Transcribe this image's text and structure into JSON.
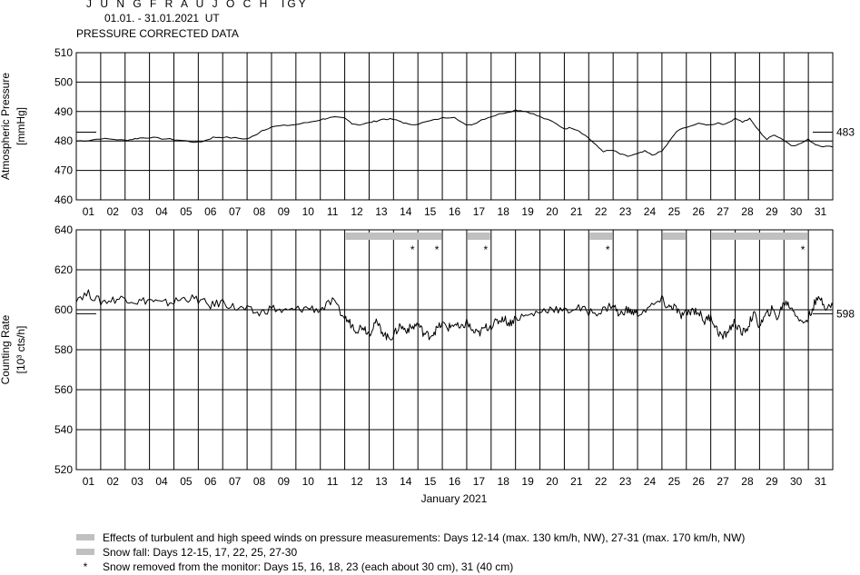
{
  "header": {
    "station": "J U N G F R A U J O C H  IGY",
    "period": "01.01. - 31.01.2021  UT",
    "subtitle": "PRESSURE CORRECTED DATA"
  },
  "days": [
    "01",
    "02",
    "03",
    "04",
    "05",
    "06",
    "07",
    "08",
    "09",
    "10",
    "11",
    "12",
    "13",
    "14",
    "15",
    "16",
    "17",
    "18",
    "19",
    "20",
    "21",
    "22",
    "23",
    "24",
    "25",
    "26",
    "27",
    "28",
    "29",
    "30",
    "31"
  ],
  "xlabel": "January 2021",
  "legend": {
    "wind": "Effects of turbulent and high speed winds on pressure measurements: Days 12-14 (max. 130 km/h, NW), 27-31 (max. 170 km/h, NW)",
    "snowfall": "Snow fall: Days 12-15, 17, 22, 25, 27-30",
    "snow_removed": "Snow removed from the monitor: Days 15, 16, 18, 23 (each about 30 cm), 31 (40 cm)",
    "star_symbol": "*"
  },
  "colors": {
    "bar": "#c0c0c0",
    "line": "#000000"
  },
  "chart_data": [
    {
      "type": "line",
      "ylabel": "Atmospheric Pressure",
      "yunit": "[mmHg]",
      "ylim": [
        460,
        510
      ],
      "yticks": [
        460,
        470,
        480,
        490,
        500,
        510
      ],
      "xlim": [
        1,
        32
      ],
      "reference_value": 483,
      "reference_label": "483",
      "series": [
        {
          "x": [
            1.0,
            1.5,
            2.0,
            2.5,
            3.0,
            3.3,
            3.6,
            4.0,
            4.5,
            5.0,
            5.5,
            6.0,
            6.3,
            6.6,
            7.0,
            7.5,
            8.0,
            8.3,
            8.6,
            9.0,
            9.5,
            10.0,
            10.5,
            11.0,
            11.3,
            11.6,
            12.0,
            12.3,
            12.6,
            13.0,
            13.3,
            13.6,
            14.0,
            14.3,
            14.6,
            15.0,
            15.5,
            16.0,
            16.5,
            17.0,
            17.3,
            17.6,
            18.0,
            18.5,
            19.0,
            19.3,
            19.6,
            20.0,
            20.5,
            21.0,
            21.3,
            21.6,
            22.0,
            22.3,
            22.6,
            23.0,
            23.3,
            23.6,
            24.0,
            24.3,
            24.6,
            25.0,
            25.3,
            25.6,
            26.0,
            26.5,
            27.0,
            27.3,
            27.6,
            28.0,
            28.3,
            28.6,
            29.0,
            29.3,
            29.6,
            30.0,
            30.3,
            30.6,
            31.0,
            31.3,
            31.6,
            32.0
          ],
          "y": [
            480.0,
            480.2,
            480.8,
            480.6,
            480.2,
            480.6,
            481.0,
            481.2,
            480.8,
            480.5,
            480.0,
            479.5,
            480.2,
            481.2,
            481.3,
            481.0,
            480.7,
            481.8,
            483.5,
            484.8,
            485.2,
            485.6,
            486.3,
            487.2,
            487.8,
            488.0,
            487.7,
            486.0,
            485.5,
            486.2,
            486.8,
            487.5,
            487.3,
            486.6,
            485.6,
            485.8,
            486.8,
            487.8,
            488.2,
            485.2,
            485.8,
            487.2,
            488.3,
            489.5,
            490.5,
            490.3,
            489.6,
            488.2,
            486.6,
            484.2,
            484.5,
            483.5,
            481.0,
            478.5,
            476.5,
            476.8,
            475.5,
            474.8,
            475.6,
            476.5,
            475.2,
            476.5,
            479.8,
            483.2,
            484.8,
            485.8,
            485.5,
            486.2,
            485.6,
            487.8,
            486.5,
            487.5,
            483.2,
            480.5,
            482.2,
            480.3,
            478.5,
            478.8,
            480.5,
            478.8,
            478.2,
            478.0
          ]
        }
      ]
    },
    {
      "type": "line",
      "ylabel": "Counting Rate",
      "yunit": "[10³ cts/h]",
      "ylim": [
        520,
        640
      ],
      "yticks": [
        520,
        540,
        560,
        580,
        600,
        620,
        640
      ],
      "xlim": [
        1,
        32
      ],
      "reference_value": 598,
      "reference_label": "598",
      "wind_periods": [
        [
          12,
          15
        ],
        [
          27,
          32
        ]
      ],
      "snowfall_periods": [
        [
          12,
          16
        ],
        [
          17,
          18
        ],
        [
          22,
          23
        ],
        [
          25,
          26
        ],
        [
          27,
          31
        ]
      ],
      "snow_removed_days": [
        15,
        16,
        18,
        23,
        31
      ],
      "series": [
        {
          "x": [
            1.0,
            1.5,
            2.0,
            2.5,
            3.0,
            3.5,
            4.0,
            4.5,
            5.0,
            5.5,
            6.0,
            6.5,
            7.0,
            7.5,
            8.0,
            8.5,
            9.0,
            9.5,
            10.0,
            10.5,
            11.0,
            11.5,
            12.0,
            12.25,
            12.5,
            12.75,
            13.0,
            13.25,
            13.5,
            13.75,
            14.0,
            14.25,
            14.5,
            14.75,
            15.0,
            15.25,
            15.5,
            15.75,
            16.0,
            16.25,
            16.5,
            16.75,
            17.0,
            17.25,
            17.5,
            17.75,
            18.0,
            18.25,
            18.5,
            18.75,
            19.0,
            19.5,
            20.0,
            20.5,
            21.0,
            21.5,
            22.0,
            22.5,
            23.0,
            23.25,
            23.5,
            23.75,
            24.0,
            24.5,
            25.0,
            25.25,
            25.5,
            25.75,
            26.0,
            26.25,
            26.5,
            26.75,
            27.0,
            27.25,
            27.5,
            27.75,
            28.0,
            28.25,
            28.5,
            28.75,
            29.0,
            29.25,
            29.5,
            29.75,
            30.0,
            30.25,
            30.5,
            30.75,
            31.0,
            31.25,
            31.5,
            31.75,
            32.0
          ],
          "y": [
            606,
            608,
            604,
            605,
            606,
            604,
            605,
            603,
            604,
            606,
            605,
            602,
            604,
            601,
            600,
            598,
            601,
            599,
            600,
            601,
            600,
            604,
            596,
            593,
            590,
            592,
            588,
            594,
            590,
            586,
            587,
            592,
            590,
            591,
            593,
            588,
            587,
            590,
            593,
            591,
            593,
            590,
            594,
            589,
            588,
            591,
            592,
            594,
            596,
            593,
            596,
            597,
            599,
            601,
            599,
            601,
            599,
            599,
            603,
            597,
            600,
            599,
            598,
            601,
            605,
            601,
            602,
            597,
            598,
            600,
            599,
            594,
            597,
            590,
            586,
            590,
            594,
            588,
            591,
            598,
            592,
            597,
            600,
            596,
            604,
            602,
            598,
            593,
            596,
            603,
            606,
            601,
            602
          ]
        }
      ]
    }
  ]
}
